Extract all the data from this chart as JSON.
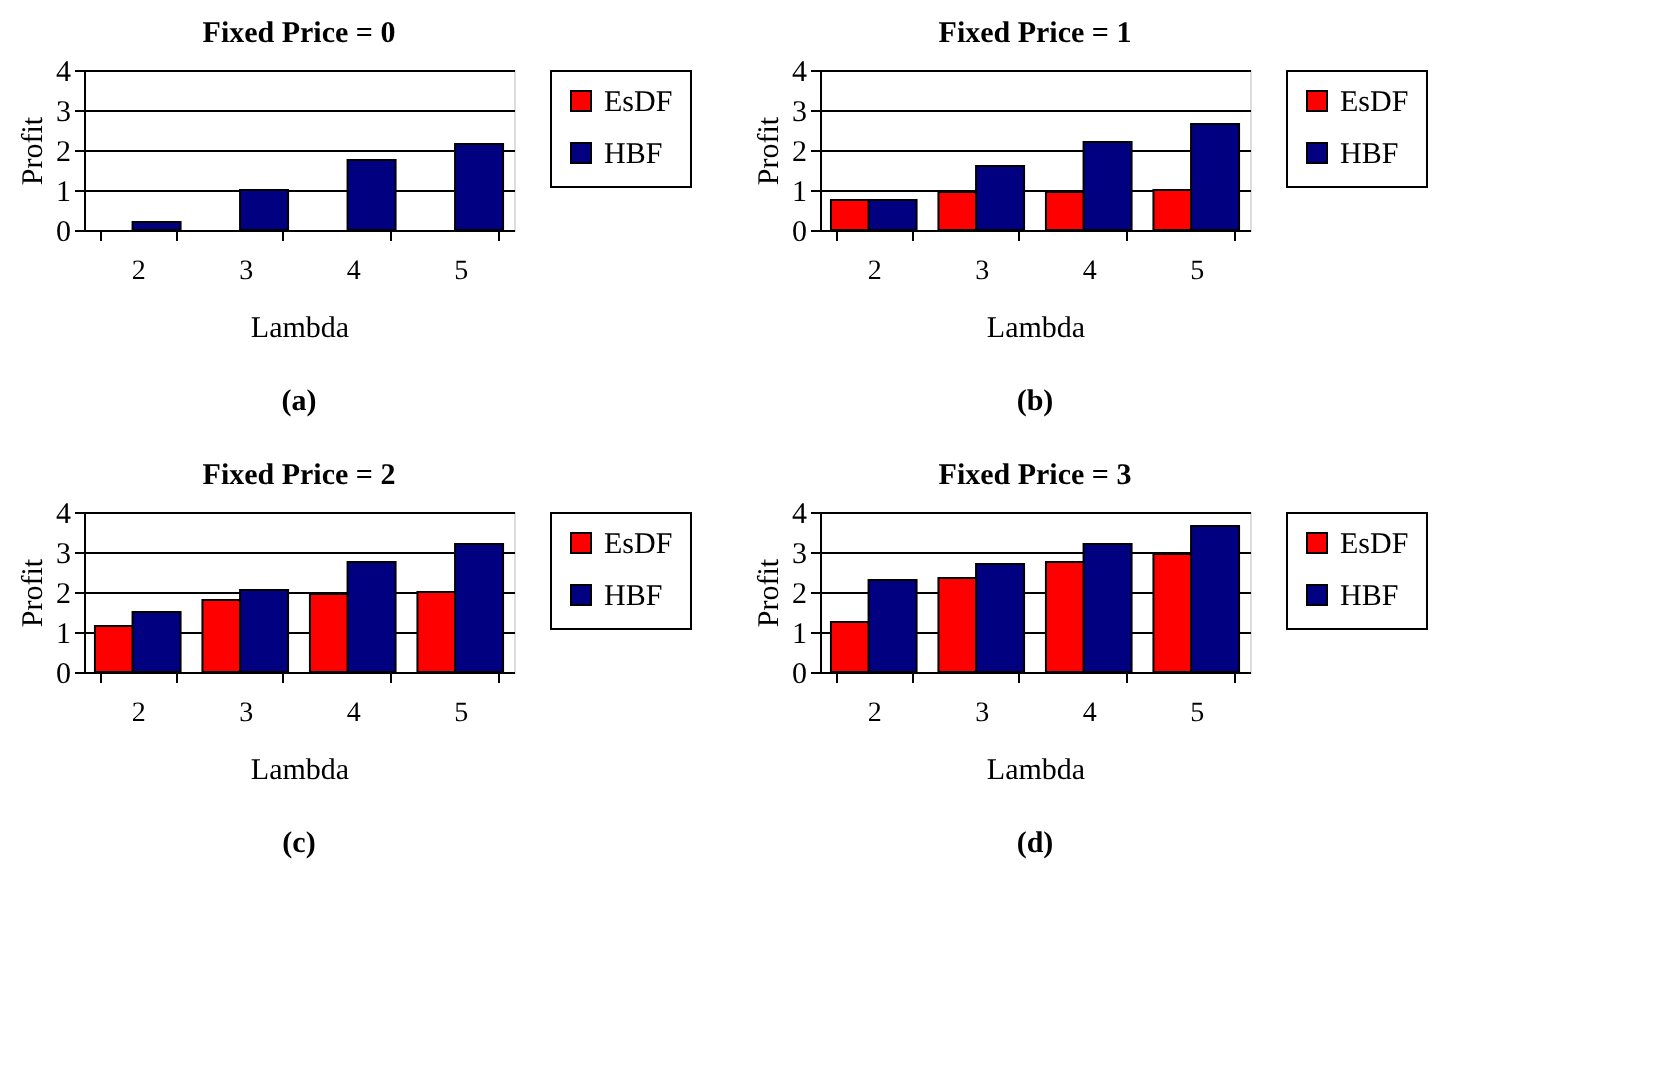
{
  "chart_data": [
    {
      "type": "bar",
      "title": "Fixed Price = 0",
      "xlabel": "Lambda",
      "ylabel": "Profit",
      "categories": [
        "2",
        "3",
        "4",
        "5"
      ],
      "series": [
        {
          "name": "EsDF",
          "color": "#ff0000",
          "values": [
            null,
            null,
            null,
            null
          ]
        },
        {
          "name": "HBF",
          "color": "#000080",
          "values": [
            0.2,
            1.0,
            1.75,
            2.15
          ]
        }
      ],
      "ylim": [
        0,
        4
      ],
      "yticks": [
        0,
        1,
        2,
        3,
        4
      ],
      "grid": "y",
      "legend": "right",
      "annotations": [
        "(a)"
      ]
    },
    {
      "type": "bar",
      "title": "Fixed Price = 1",
      "xlabel": "Lambda",
      "ylabel": "Profit",
      "categories": [
        "2",
        "3",
        "4",
        "5"
      ],
      "series": [
        {
          "name": "EsDF",
          "color": "#ff0000",
          "values": [
            0.75,
            0.95,
            0.95,
            1.0
          ]
        },
        {
          "name": "HBF",
          "color": "#000080",
          "values": [
            0.75,
            1.6,
            2.2,
            2.65
          ]
        }
      ],
      "ylim": [
        0,
        4
      ],
      "yticks": [
        0,
        1,
        2,
        3,
        4
      ],
      "grid": "y",
      "legend": "right",
      "annotations": [
        "(b)"
      ]
    },
    {
      "type": "bar",
      "title": "Fixed Price = 2",
      "xlabel": "Lambda",
      "ylabel": "Profit",
      "categories": [
        "2",
        "3",
        "4",
        "5"
      ],
      "series": [
        {
          "name": "EsDF",
          "color": "#ff0000",
          "values": [
            1.15,
            1.8,
            1.95,
            2.0
          ]
        },
        {
          "name": "HBF",
          "color": "#000080",
          "values": [
            1.5,
            2.05,
            2.75,
            3.2
          ]
        }
      ],
      "ylim": [
        0,
        4
      ],
      "yticks": [
        0,
        1,
        2,
        3,
        4
      ],
      "grid": "y",
      "legend": "right",
      "annotations": [
        "(c)"
      ]
    },
    {
      "type": "bar",
      "title": "Fixed Price = 3",
      "xlabel": "Lambda",
      "ylabel": "Profit",
      "categories": [
        "2",
        "3",
        "4",
        "5"
      ],
      "series": [
        {
          "name": "EsDF",
          "color": "#ff0000",
          "values": [
            1.25,
            2.35,
            2.75,
            2.95
          ]
        },
        {
          "name": "HBF",
          "color": "#000080",
          "values": [
            2.3,
            2.7,
            3.2,
            3.65
          ]
        }
      ],
      "ylim": [
        0,
        4
      ],
      "yticks": [
        0,
        1,
        2,
        3,
        4
      ],
      "grid": "y",
      "legend": "right",
      "annotations": [
        "(d)"
      ]
    }
  ]
}
